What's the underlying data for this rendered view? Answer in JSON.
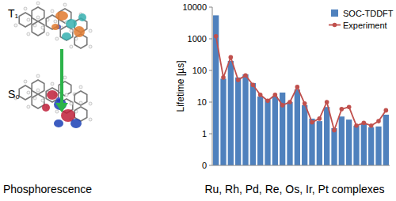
{
  "chart_data": {
    "type": "bar",
    "x_label": "Ru, Rh, Pd, Re, Os, Ir, Pt complexes",
    "y_label": "Lifetime [µs]",
    "annotations": [
      "T₁",
      "S₀",
      "Phosphorescence"
    ],
    "categories": [
      null,
      null,
      null,
      null,
      null,
      null,
      null,
      null,
      null,
      null,
      null,
      null,
      null,
      null,
      null,
      null,
      null,
      null,
      null,
      null,
      null,
      null,
      null,
      null
    ],
    "series": [
      {
        "name": "SOC-TDDFT",
        "type": "bar",
        "color": "#4f81bd",
        "values": [
          5500,
          55,
          200,
          60,
          75,
          40,
          15,
          12,
          15,
          20,
          10,
          25,
          8,
          3,
          2.5,
          7,
          1.5,
          3.5,
          2.8,
          1.8,
          2,
          1.6,
          1.7,
          4
        ]
      },
      {
        "name": "Experiment",
        "type": "line",
        "color": "#c0504d",
        "marker": "circle",
        "values": [
          1200,
          60,
          260,
          50,
          70,
          35,
          17,
          11,
          17,
          8,
          10,
          30,
          9,
          2.3,
          3,
          10,
          1.3,
          6,
          7,
          1.8,
          2.2,
          1.8,
          2.5,
          5.5
        ]
      }
    ],
    "log": "y",
    "ylim": [
      0.1,
      10000
    ],
    "yticks": [
      {
        "value": 0.1,
        "label": "0"
      },
      1,
      10,
      100,
      1000,
      10000
    ],
    "grid": false,
    "legend": "top-right",
    "tick_labels": "y"
  }
}
